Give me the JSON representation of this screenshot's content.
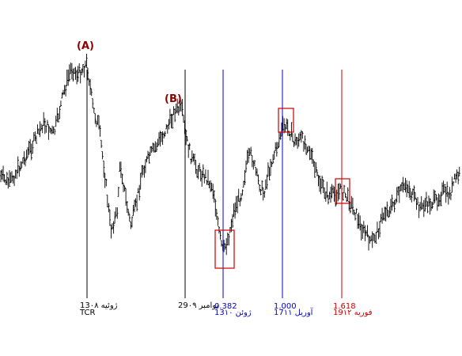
{
  "chart_data": {
    "type": "ohlc",
    "title": "",
    "xlabel": "",
    "ylabel": "",
    "grid": false,
    "symbol": "TCR",
    "colors": {
      "price": "#000000",
      "black_line": "#000000",
      "blue_line": "#0000cc",
      "red_line": "#cc0000",
      "box": "#cc0000",
      "point_label": "#8b0000"
    },
    "points": [
      {
        "label": "(A)"
      },
      {
        "label": "(B)"
      }
    ],
    "vertical_lines": [
      {
        "id": "vline-a",
        "color": "#000000",
        "ratio": "",
        "date": "13ژوئیه ۰۸"
      },
      {
        "id": "vline-b",
        "color": "#000000",
        "ratio": "",
        "date": "29نوامبر ۰۹"
      },
      {
        "id": "vline-382",
        "color": "#0000cc",
        "ratio": "0.382",
        "date": "13ژوئن ۱۰"
      },
      {
        "id": "vline-1000",
        "color": "#0000cc",
        "ratio": "1.000",
        "date": "17آوریل ۱۱"
      },
      {
        "id": "vline-1618",
        "color": "#cc0000",
        "ratio": "1.618",
        "date": "19فوریه ۱۲"
      }
    ],
    "price_path": [
      [
        0,
        222
      ],
      [
        12,
        232
      ],
      [
        25,
        210
      ],
      [
        40,
        185
      ],
      [
        55,
        155
      ],
      [
        68,
        170
      ],
      [
        80,
        120
      ],
      [
        90,
        85
      ],
      [
        98,
        95
      ],
      [
        110,
        80
      ],
      [
        118,
        140
      ],
      [
        125,
        160
      ],
      [
        132,
        215
      ],
      [
        140,
        290
      ],
      [
        148,
        270
      ],
      [
        152,
        205
      ],
      [
        158,
        245
      ],
      [
        165,
        285
      ],
      [
        172,
        260
      ],
      [
        180,
        215
      ],
      [
        188,
        200
      ],
      [
        200,
        180
      ],
      [
        212,
        160
      ],
      [
        222,
        138
      ],
      [
        230,
        140
      ],
      [
        235,
        175
      ],
      [
        242,
        200
      ],
      [
        250,
        215
      ],
      [
        262,
        225
      ],
      [
        270,
        240
      ],
      [
        276,
        290
      ],
      [
        282,
        320
      ],
      [
        290,
        295
      ],
      [
        296,
        265
      ],
      [
        305,
        245
      ],
      [
        312,
        205
      ],
      [
        318,
        195
      ],
      [
        325,
        225
      ],
      [
        333,
        245
      ],
      [
        340,
        215
      ],
      [
        350,
        185
      ],
      [
        358,
        160
      ],
      [
        365,
        162
      ],
      [
        372,
        180
      ],
      [
        380,
        175
      ],
      [
        390,
        185
      ],
      [
        398,
        215
      ],
      [
        406,
        235
      ],
      [
        415,
        248
      ],
      [
        425,
        245
      ],
      [
        432,
        240
      ],
      [
        440,
        252
      ],
      [
        448,
        265
      ],
      [
        455,
        285
      ],
      [
        462,
        295
      ],
      [
        470,
        308
      ],
      [
        478,
        290
      ],
      [
        486,
        268
      ],
      [
        495,
        262
      ],
      [
        505,
        245
      ],
      [
        513,
        232
      ],
      [
        520,
        245
      ],
      [
        530,
        262
      ],
      [
        540,
        258
      ],
      [
        550,
        255
      ],
      [
        560,
        242
      ],
      [
        568,
        248
      ],
      [
        576,
        225
      ],
      [
        584,
        220
      ]
    ],
    "highlight_boxes": [
      {
        "id": "box-low"
      },
      {
        "id": "box-high"
      },
      {
        "id": "box-red-line"
      }
    ]
  }
}
